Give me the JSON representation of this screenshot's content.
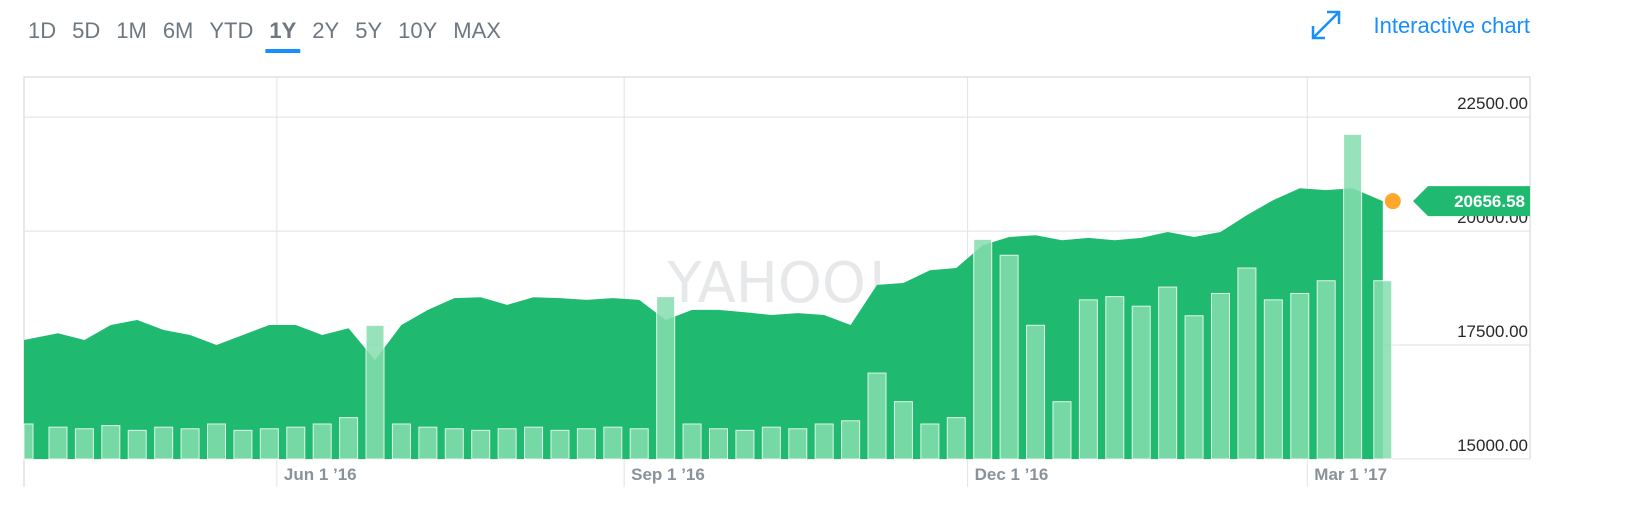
{
  "toolbar": {
    "range_tabs": [
      "1D",
      "5D",
      "1M",
      "6M",
      "YTD",
      "1Y",
      "2Y",
      "5Y",
      "10Y",
      "MAX"
    ],
    "active_tab": 5,
    "interactive_chart": "Interactive chart"
  },
  "chart_data": {
    "type": "area",
    "watermark": "YAHOO!",
    "color": "#1fba6f",
    "volume_color": "#86deaf",
    "x": [
      "2016-03-26",
      "2016-04-04",
      "2016-04-11",
      "2016-04-18",
      "2016-04-25",
      "2016-05-02",
      "2016-05-09",
      "2016-05-16",
      "2016-05-23",
      "2016-05-30",
      "2016-06-06",
      "2016-06-13",
      "2016-06-20",
      "2016-06-27",
      "2016-07-04",
      "2016-07-11",
      "2016-07-18",
      "2016-07-25",
      "2016-08-01",
      "2016-08-08",
      "2016-08-15",
      "2016-08-22",
      "2016-08-29",
      "2016-09-05",
      "2016-09-12",
      "2016-09-19",
      "2016-09-26",
      "2016-10-03",
      "2016-10-10",
      "2016-10-17",
      "2016-10-24",
      "2016-10-31",
      "2016-11-07",
      "2016-11-14",
      "2016-11-21",
      "2016-11-28",
      "2016-12-05",
      "2016-12-12",
      "2016-12-19",
      "2016-12-26",
      "2017-01-02",
      "2017-01-09",
      "2017-01-16",
      "2017-01-23",
      "2017-01-30",
      "2017-02-06",
      "2017-02-13",
      "2017-02-20",
      "2017-02-27",
      "2017-03-06",
      "2017-03-13",
      "2017-03-21"
    ],
    "values": [
      17610,
      17760,
      17610,
      17940,
      18050,
      17830,
      17720,
      17500,
      17720,
      17940,
      17940,
      17720,
      17870,
      17170,
      17940,
      18270,
      18530,
      18550,
      18380,
      18550,
      18530,
      18490,
      18530,
      18490,
      18050,
      18270,
      18270,
      18220,
      18160,
      18200,
      18160,
      17940,
      18820,
      18860,
      19140,
      19190,
      19690,
      19870,
      19910,
      19800,
      19850,
      19800,
      19850,
      19980,
      19870,
      19980,
      20350,
      20680,
      20940,
      20900,
      20940,
      20656.58
    ],
    "volume": [
      110,
      100,
      95,
      105,
      90,
      100,
      95,
      110,
      90,
      95,
      100,
      110,
      130,
      420,
      110,
      100,
      95,
      90,
      95,
      100,
      90,
      95,
      100,
      95,
      510,
      110,
      95,
      90,
      100,
      95,
      110,
      120,
      270,
      180,
      110,
      130,
      690,
      640,
      420,
      180,
      500,
      510,
      480,
      540,
      450,
      520,
      600,
      500,
      520,
      560,
      1020,
      560
    ],
    "vlim": [
      0,
      1200
    ],
    "xlim": [
      "2016-03-26",
      "2017-04-29"
    ],
    "xticks": [
      {
        "value": "2016-06-01",
        "label": "Jun 1 ’16"
      },
      {
        "value": "2016-09-01",
        "label": "Sep 1 ’16"
      },
      {
        "value": "2016-12-01",
        "label": "Dec 1 ’16"
      },
      {
        "value": "2017-03-01",
        "label": "Mar 1 ’17"
      }
    ],
    "ylim": [
      15000,
      23380
    ],
    "yticks": [
      {
        "value": 15000,
        "label": "15000.00"
      },
      {
        "value": 17500,
        "label": "17500.00"
      },
      {
        "value": 20000,
        "label": "20000.00"
      },
      {
        "value": 22500,
        "label": "22500.00"
      }
    ],
    "grid": true
  }
}
